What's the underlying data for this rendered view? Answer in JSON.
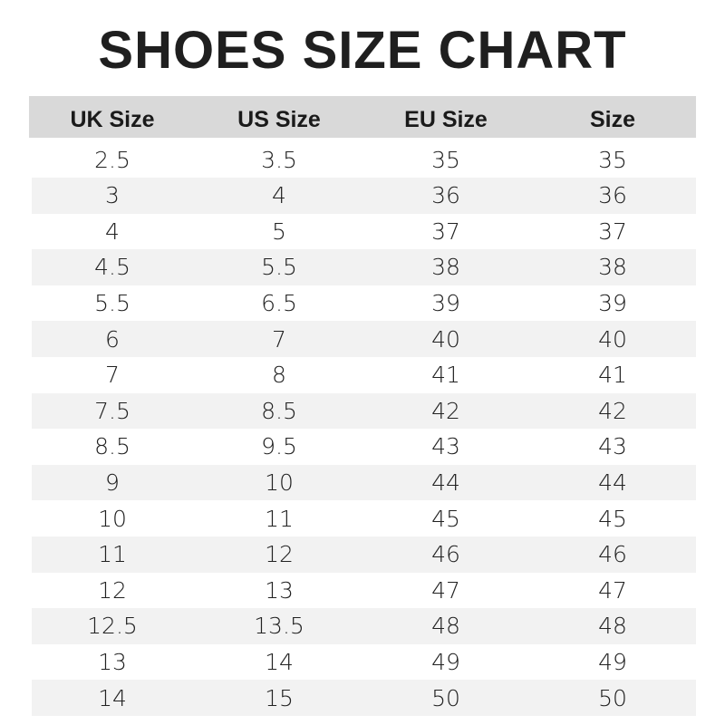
{
  "title": "SHOES SIZE CHART",
  "colors": {
    "header_bg": "#d9d9d9",
    "stripe_bg": "#f2f2f2",
    "text": "#1f1f1f"
  },
  "columns": [
    "UK Size",
    "US Size",
    "EU Size",
    "Size"
  ],
  "rows": [
    [
      "2.5",
      "3.5",
      "35",
      "35"
    ],
    [
      "3",
      "4",
      "36",
      "36"
    ],
    [
      "4",
      "5",
      "37",
      "37"
    ],
    [
      "4.5",
      "5.5",
      "38",
      "38"
    ],
    [
      "5.5",
      "6.5",
      "39",
      "39"
    ],
    [
      "6",
      "7",
      "40",
      "40"
    ],
    [
      "7",
      "8",
      "41",
      "41"
    ],
    [
      "7.5",
      "8.5",
      "42",
      "42"
    ],
    [
      "8.5",
      "9.5",
      "43",
      "43"
    ],
    [
      "9",
      "10",
      "44",
      "44"
    ],
    [
      "10",
      "11",
      "45",
      "45"
    ],
    [
      "11",
      "12",
      "46",
      "46"
    ],
    [
      "12",
      "13",
      "47",
      "47"
    ],
    [
      "12.5",
      "13.5",
      "48",
      "48"
    ],
    [
      "13",
      "14",
      "49",
      "49"
    ],
    [
      "14",
      "15",
      "50",
      "50"
    ]
  ]
}
